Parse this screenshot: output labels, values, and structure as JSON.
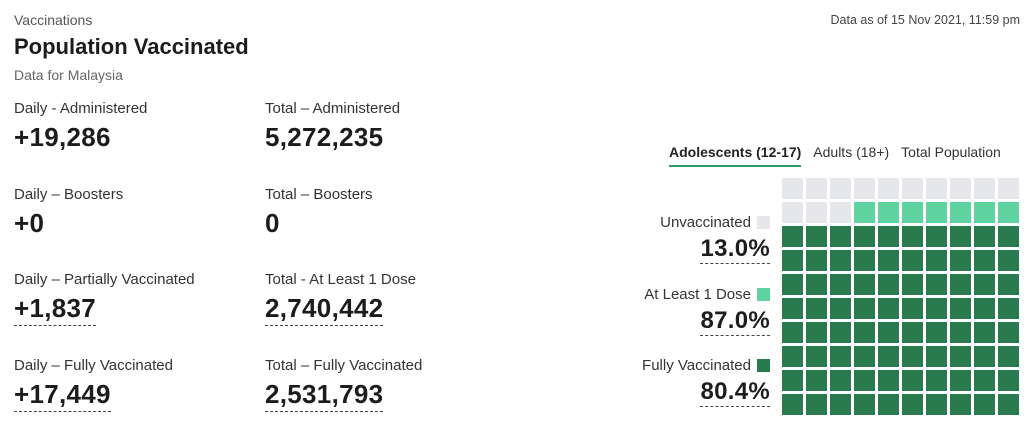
{
  "header": {
    "eyebrow": "Vaccinations",
    "title": "Population Vaccinated",
    "subtitle": "Data for Malaysia",
    "as_of": "Data as of 15 Nov 2021, 11:59 pm"
  },
  "stats": [
    {
      "label": "Daily - Administered",
      "value": "+19,286"
    },
    {
      "label": "Total – Administered",
      "value": "5,272,235"
    },
    {
      "label": "Daily – Boosters",
      "value": "+0"
    },
    {
      "label": "Total – Boosters",
      "value": "0"
    },
    {
      "label": "Daily – Partially Vaccinated",
      "value": "+1,837"
    },
    {
      "label": "Total - At Least 1 Dose",
      "value": "2,740,442"
    },
    {
      "label": "Daily – Fully Vaccinated",
      "value": "+17,449"
    },
    {
      "label": "Total – Fully Vaccinated",
      "value": "2,531,793"
    }
  ],
  "tabs": [
    {
      "label": "Adolescents (12-17)",
      "active": true
    },
    {
      "label": "Adults (18+)",
      "active": false
    },
    {
      "label": "Total Population",
      "active": false
    }
  ],
  "legend": [
    {
      "label": "Unvaccinated",
      "value": "13.0%",
      "color": "#e6e7ea"
    },
    {
      "label": "At Least 1 Dose",
      "value": "87.0%",
      "color": "#5fd3a0"
    },
    {
      "label": "Fully Vaccinated",
      "value": "80.4%",
      "color": "#2a7a4f"
    }
  ],
  "chart_data": {
    "type": "waffle",
    "total_cells": 100,
    "categories": [
      "Unvaccinated",
      "At Least 1 Dose",
      "Fully Vaccinated"
    ],
    "cells": [
      13,
      7,
      80
    ],
    "colors": [
      "#e6e7ea",
      "#5fd3a0",
      "#2a7a4f"
    ]
  }
}
